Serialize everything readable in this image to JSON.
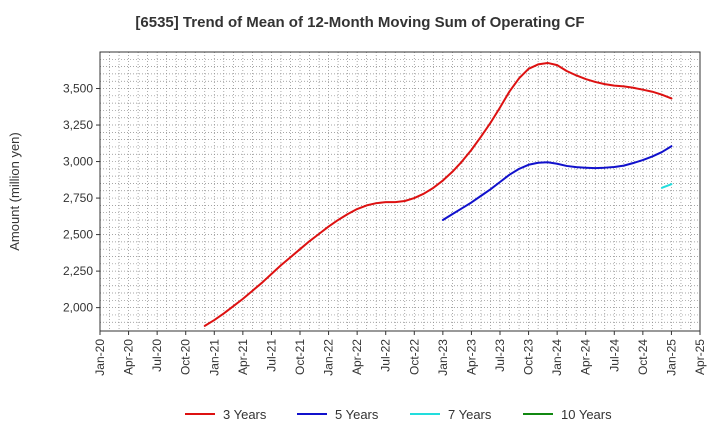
{
  "chart_data": {
    "type": "line",
    "title": "[6535]  Trend of Mean of 12-Month Moving Sum of Operating CF",
    "xlabel": "",
    "ylabel": "Amount (million yen)",
    "ylim": [
      1840,
      3750
    ],
    "y_ticks": [
      2000,
      2250,
      2500,
      2750,
      3000,
      3250,
      3500
    ],
    "y_tick_labels": [
      "2,000",
      "2,250",
      "2,500",
      "2,750",
      "3,000",
      "3,250",
      "3,500"
    ],
    "x_ticks": [
      "Jan-20",
      "Apr-20",
      "Jul-20",
      "Oct-20",
      "Jan-21",
      "Apr-21",
      "Jul-21",
      "Oct-21",
      "Jan-22",
      "Apr-22",
      "Jul-22",
      "Oct-22",
      "Jan-23",
      "Apr-23",
      "Jul-23",
      "Oct-23",
      "Jan-24",
      "Apr-24",
      "Jul-24",
      "Oct-24",
      "Jan-25",
      "Apr-25"
    ],
    "x_range_months": [
      0,
      63
    ],
    "grid": true,
    "legend_position": "bottom",
    "series": [
      {
        "name": "3 Years",
        "color": "#dd1111",
        "x_months": [
          11,
          12,
          13,
          14,
          15,
          16,
          17,
          18,
          19,
          20,
          21,
          22,
          23,
          24,
          25,
          26,
          27,
          28,
          29,
          30,
          31,
          32,
          33,
          34,
          35,
          36,
          37,
          38,
          39,
          40,
          41,
          42,
          43,
          44,
          45,
          46,
          47,
          48,
          49,
          50,
          51,
          52,
          53,
          54,
          55,
          56,
          57,
          58,
          59,
          60
        ],
        "values": [
          1875,
          1915,
          1960,
          2010,
          2060,
          2115,
          2170,
          2230,
          2290,
          2345,
          2400,
          2455,
          2505,
          2555,
          2600,
          2640,
          2675,
          2700,
          2715,
          2722,
          2722,
          2730,
          2750,
          2780,
          2820,
          2870,
          2930,
          3000,
          3080,
          3170,
          3265,
          3370,
          3480,
          3570,
          3635,
          3665,
          3675,
          3660,
          3620,
          3590,
          3565,
          3545,
          3530,
          3520,
          3515,
          3505,
          3492,
          3478,
          3458,
          3432
        ]
      },
      {
        "name": "5 Years",
        "color": "#1111cc",
        "x_months": [
          36,
          37,
          38,
          39,
          40,
          41,
          42,
          43,
          44,
          45,
          46,
          47,
          48,
          49,
          50,
          51,
          52,
          53,
          54,
          55,
          56,
          57,
          58,
          59,
          60
        ],
        "values": [
          2600,
          2640,
          2680,
          2720,
          2765,
          2810,
          2860,
          2910,
          2950,
          2978,
          2992,
          2995,
          2985,
          2970,
          2962,
          2958,
          2955,
          2958,
          2963,
          2972,
          2990,
          3010,
          3035,
          3065,
          3105
        ]
      },
      {
        "name": "7 Years",
        "color": "#22dddd",
        "x_months": [
          59,
          60
        ],
        "values": [
          2820,
          2845
        ]
      },
      {
        "name": "10 Years",
        "color": "#118811",
        "x_months": [],
        "values": []
      }
    ]
  }
}
